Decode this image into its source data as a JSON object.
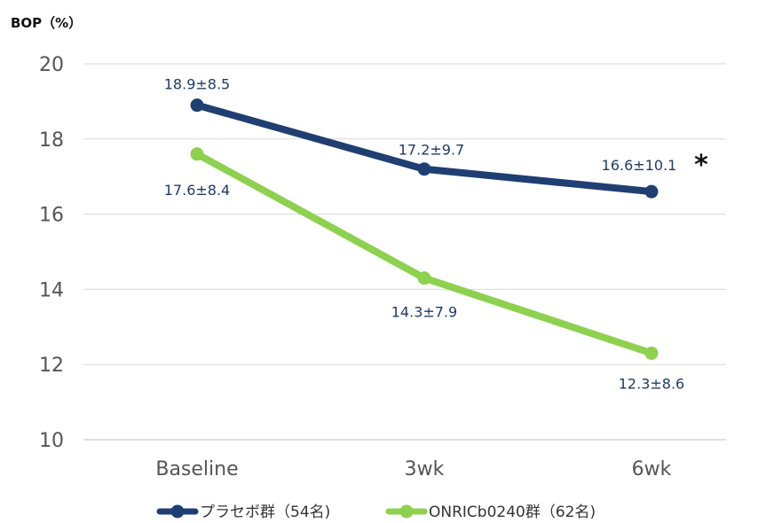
{
  "chart_data": {
    "type": "line",
    "unit_label": "BOP（%）",
    "categories": [
      "Baseline",
      "3wk",
      "6wk"
    ],
    "ylim": [
      10,
      20
    ],
    "yticks": [
      10,
      12,
      14,
      16,
      18,
      20
    ],
    "grid": true,
    "legend_position": "bottom",
    "series": [
      {
        "name": "プラセボ群（54名)",
        "color": "#1f3f73",
        "values": [
          18.9,
          17.2,
          16.6
        ],
        "labels": [
          "18.9±8.5",
          "17.2±9.7",
          "16.6±10.1"
        ]
      },
      {
        "name": "ONRICb0240群（62名)",
        "color": "#8dd14f",
        "values": [
          17.6,
          14.3,
          12.3
        ],
        "labels": [
          "17.6±8.4",
          "14.3±7.9",
          "12.3±8.6"
        ]
      }
    ],
    "annotations": [
      {
        "text": "*",
        "series": 0,
        "category": "6wk"
      }
    ]
  }
}
